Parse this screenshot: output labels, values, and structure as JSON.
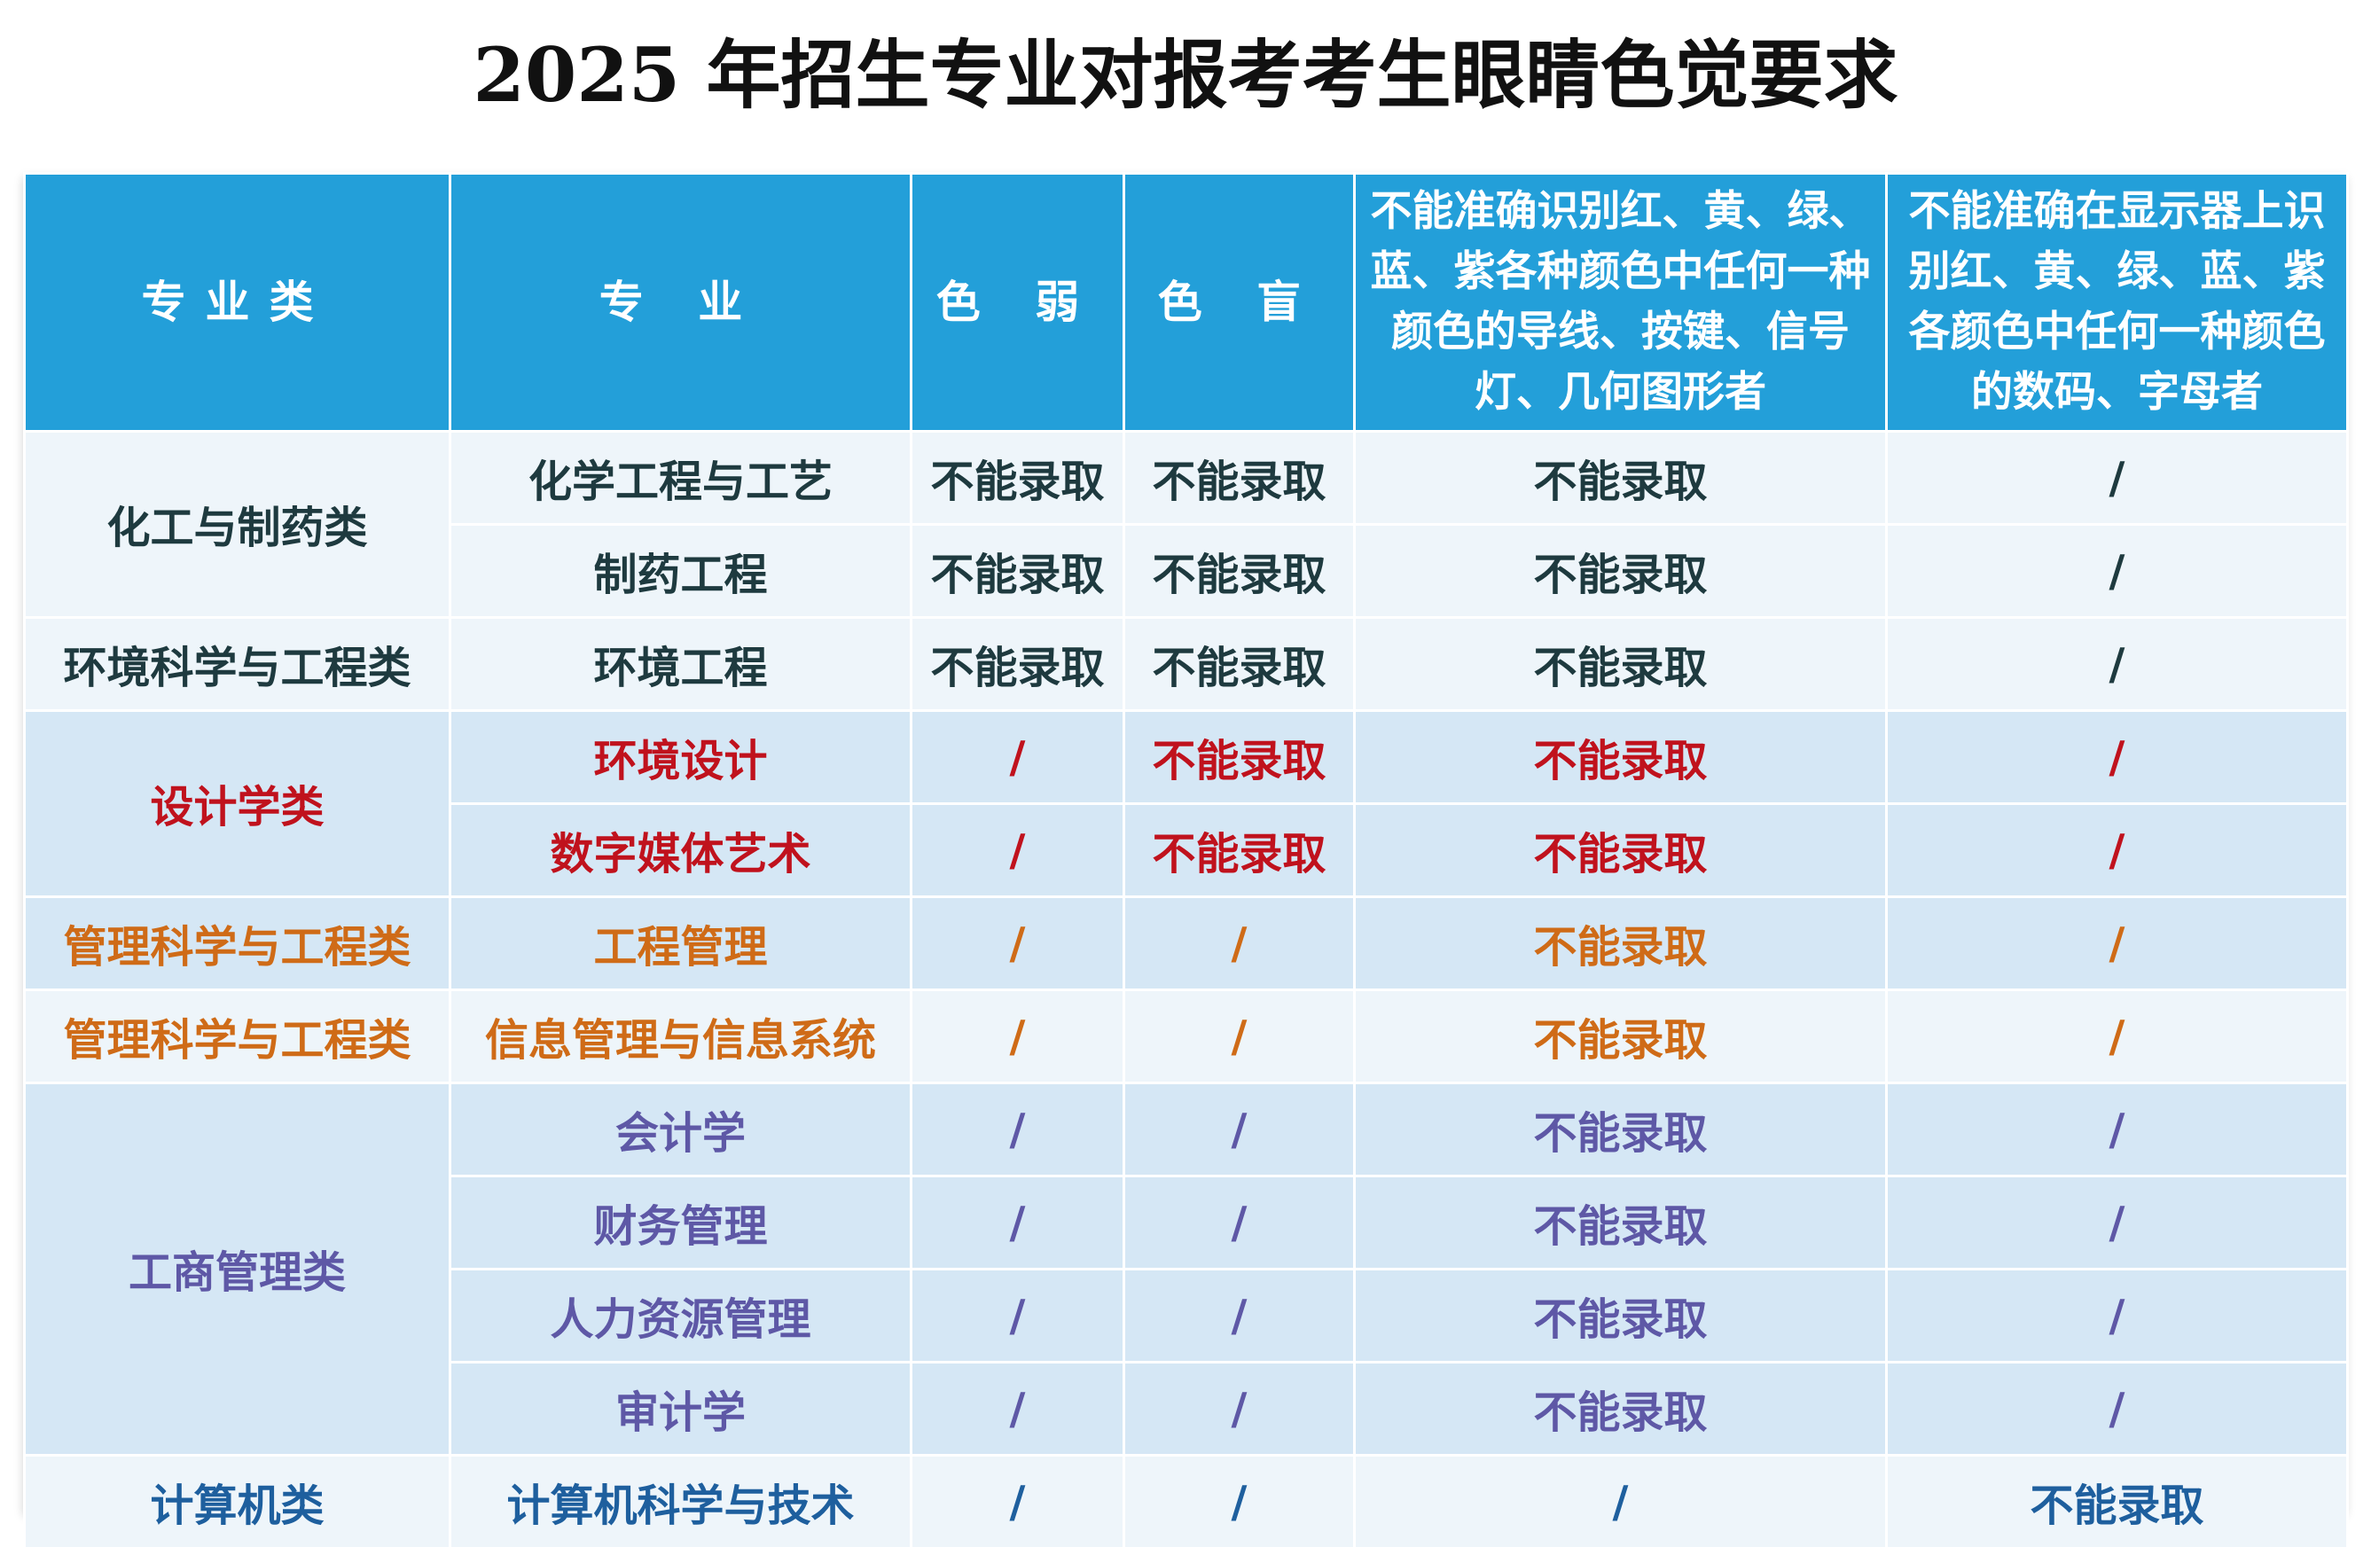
{
  "title": "2025 年招生专业对报考考生眼睛色觉要求",
  "headers": {
    "category": "专业类",
    "major": "专 业",
    "weak": "色 弱",
    "blind": "色 盲",
    "wire": "不能准确识别红、黄、绿、蓝、紫各种颜色中任何一种颜色的导线、按键、信号灯、几何图形者",
    "display": "不能准确在显示器上识别红、黄、绿、蓝、紫各颜色中任何一种颜色的数码、字母者"
  },
  "groups": [
    {
      "category": "化工与制药类",
      "color": "#1e3a3f",
      "rows": [
        {
          "major": "化学工程与工艺",
          "weak": "不能录取",
          "blind": "不能录取",
          "wire": "不能录取",
          "display": "/"
        },
        {
          "major": "制药工程",
          "weak": "不能录取",
          "blind": "不能录取",
          "wire": "不能录取",
          "display": "/"
        }
      ]
    },
    {
      "category": "环境科学与工程类",
      "color": "#1e3a3f",
      "rows": [
        {
          "major": "环境工程",
          "weak": "不能录取",
          "blind": "不能录取",
          "wire": "不能录取",
          "display": "/"
        }
      ]
    },
    {
      "category": "设计学类",
      "color": "#c0121d",
      "rows": [
        {
          "major": "环境设计",
          "weak": "/",
          "blind": "不能录取",
          "wire": "不能录取",
          "display": "/"
        },
        {
          "major": "数字媒体艺术",
          "weak": "/",
          "blind": "不能录取",
          "wire": "不能录取",
          "display": "/"
        }
      ]
    },
    {
      "category": "管理科学与工程类",
      "color": "#cf6b17",
      "rows": [
        {
          "major": "工程管理",
          "weak": "/",
          "blind": "/",
          "wire": "不能录取",
          "display": "/"
        }
      ]
    },
    {
      "category": "管理科学与工程类",
      "color": "#cf6b17",
      "rows": [
        {
          "major": "信息管理与信息系统",
          "weak": "/",
          "blind": "/",
          "wire": "不能录取",
          "display": "/"
        }
      ]
    },
    {
      "category": "工商管理类",
      "color": "#5e58a6",
      "rows": [
        {
          "major": "会计学",
          "weak": "/",
          "blind": "/",
          "wire": "不能录取",
          "display": "/"
        },
        {
          "major": "财务管理",
          "weak": "/",
          "blind": "/",
          "wire": "不能录取",
          "display": "/"
        },
        {
          "major": "人力资源管理",
          "weak": "/",
          "blind": "/",
          "wire": "不能录取",
          "display": "/"
        },
        {
          "major": "审计学",
          "weak": "/",
          "blind": "/",
          "wire": "不能录取",
          "display": "/"
        }
      ]
    },
    {
      "category": "计算机类",
      "color": "#1e5f9e",
      "rows": [
        {
          "major": "计算机科学与技术",
          "weak": "/",
          "blind": "/",
          "wire": "/",
          "display": "不能录取"
        }
      ]
    }
  ]
}
